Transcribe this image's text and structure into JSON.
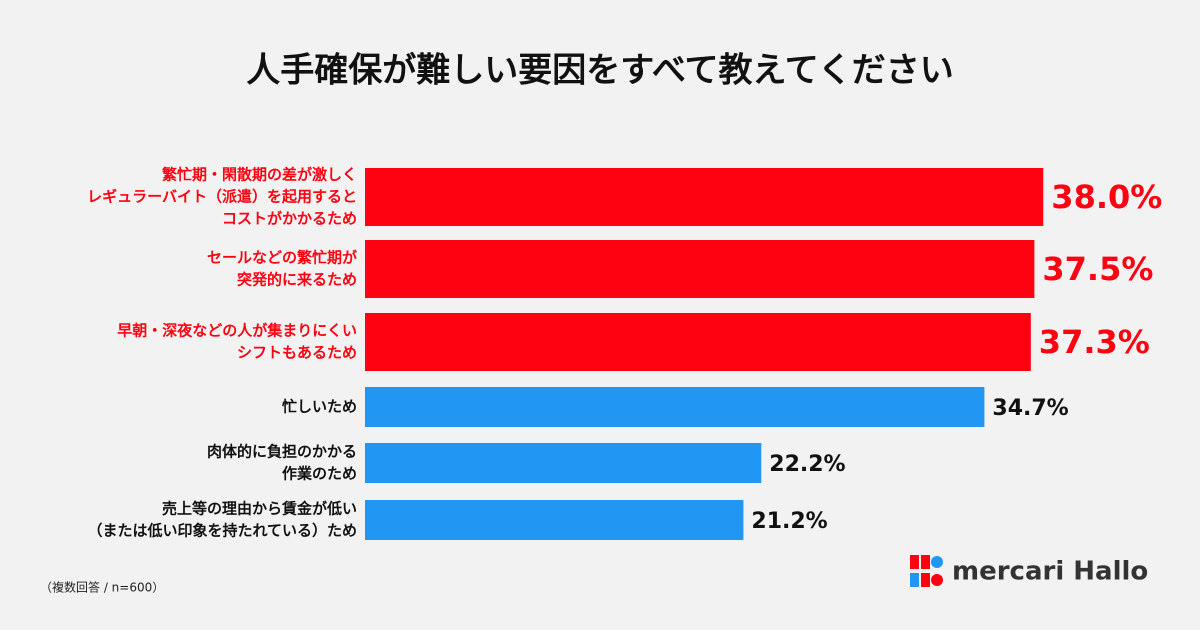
{
  "chart_data": {
    "type": "hbar",
    "title": "人手確保が難しい要因をすべて教えてください",
    "categories": [
      [
        "繁忙期・閑散期の差が激しく",
        "レギュラーバイト（派遣）を起用すると",
        "コストがかかるため"
      ],
      [
        "セールなどの繁忙期が",
        "突発的に来るため"
      ],
      [
        "早朝・深夜などの人が集まりにくい",
        "シフトもあるため"
      ],
      [
        "忙しいため"
      ],
      [
        "肉体的に負担のかかる",
        "作業のため"
      ],
      [
        "売上等の理由から賃金が低い",
        "（または低い印象を持たれている）ため"
      ]
    ],
    "values": [
      38.0,
      37.5,
      37.3,
      34.7,
      22.2,
      21.2
    ],
    "value_labels": [
      "38.0%",
      "37.5%",
      "37.3%",
      "34.7%",
      "22.2%",
      "21.2%"
    ],
    "colors": [
      "#ff0211",
      "#ff0211",
      "#ff0211",
      "#2196f3",
      "#2196f3",
      "#2196f3"
    ],
    "xlim": [
      0,
      40
    ],
    "note": "（複数回答 / n=600）",
    "brand": "mercari Hallo"
  }
}
